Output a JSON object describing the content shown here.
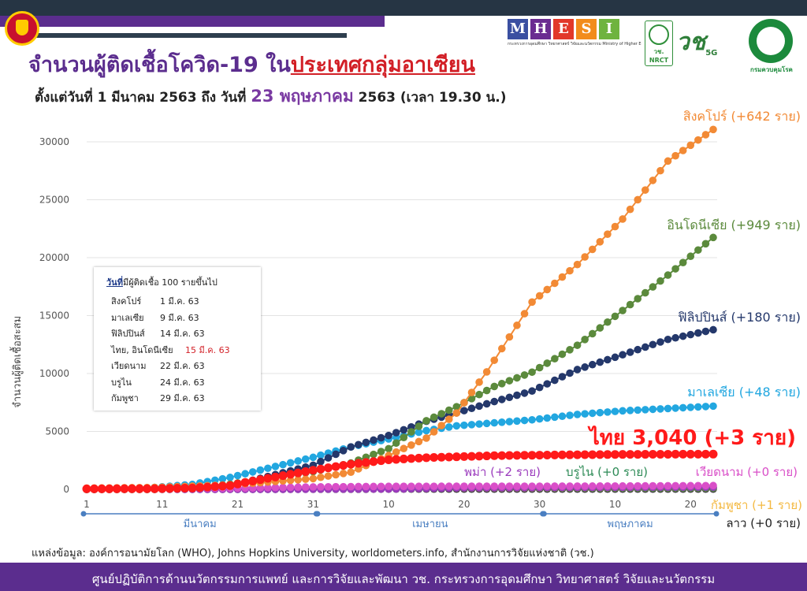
{
  "header": {
    "title_part1": "จำนวนผู้ติดเชื้อโควิด-19 ใน",
    "title_part2": "ประเทศกลุ่มอาเซียน",
    "subtitle_part1": "ตั้งแต่วันที่ 1 มีนาคม 2563 ถึง วันที่ ",
    "subtitle_date": "23 พฤษภาคม",
    "subtitle_part2": " 2563 (เวลา 19.30 น.)"
  },
  "logos": {
    "mhesi_letters": [
      "M",
      "H",
      "E",
      "S",
      "I"
    ],
    "mhesi_colors": [
      "#3a4fa1",
      "#6a2c91",
      "#e2382a",
      "#f28c1c",
      "#6fb33f"
    ],
    "mhesi_caption": "กระทรวงการอุดมศึกษา วิทยาศาสตร์ วิจัยและนวัตกรรม Ministry of Higher Education, Science, Research and Innovation",
    "nrct": "วช. NRCT",
    "vc5g": "วช",
    "vc5g_sub": "5G",
    "moph": "กรมควบคุมโรค"
  },
  "chart_data": {
    "type": "line",
    "ylabel": "จำนวนผู้ติดเชื้อสะสม",
    "ylim": [
      0,
      32000
    ],
    "yticks": [
      "0",
      "5000",
      "10000",
      "15000",
      "20000",
      "25000",
      "30000"
    ],
    "ytick_values": [
      0,
      5000,
      10000,
      15000,
      20000,
      25000,
      30000
    ],
    "xticks": [
      "1",
      "11",
      "21",
      "31",
      "10",
      "20",
      "30",
      "10",
      "20"
    ],
    "xtick_days": [
      1,
      11,
      21,
      31,
      41,
      51,
      61,
      71,
      81
    ],
    "months": [
      {
        "label": "มีนาคม",
        "start": 1,
        "end": 31
      },
      {
        "label": "เมษายน",
        "start": 32,
        "end": 61
      },
      {
        "label": "พฤษภาคม",
        "start": 62,
        "end": 84
      }
    ],
    "x_unit": "day since 1 Mar 2020",
    "x_range": [
      1,
      84
    ],
    "series": [
      {
        "name": "สิงคโปร์",
        "label": "สิงคโปร์ (+642 ราย)",
        "color": "#f28a35",
        "points": [
          [
            1,
            108
          ],
          [
            10,
            166
          ],
          [
            20,
            385
          ],
          [
            31,
            926
          ],
          [
            36,
            1481
          ],
          [
            41,
            2918
          ],
          [
            46,
            4427
          ],
          [
            50,
            6588
          ],
          [
            54,
            10141
          ],
          [
            60,
            16169
          ],
          [
            66,
            19410
          ],
          [
            72,
            23336
          ],
          [
            78,
            28343
          ],
          [
            84,
            31068
          ]
        ]
      },
      {
        "name": "อินโดนีเซีย",
        "label": "อินโดนีเซีย (+949 ราย)",
        "color": "#5b8a3c",
        "points": [
          [
            1,
            0
          ],
          [
            10,
            0
          ],
          [
            15,
            117
          ],
          [
            20,
            450
          ],
          [
            31,
            1528
          ],
          [
            36,
            2273
          ],
          [
            41,
            3512
          ],
          [
            46,
            5923
          ],
          [
            50,
            7135
          ],
          [
            55,
            8882
          ],
          [
            60,
            10118
          ],
          [
            66,
            12438
          ],
          [
            72,
            15438
          ],
          [
            78,
            18496
          ],
          [
            84,
            21745
          ]
        ]
      },
      {
        "name": "ฟิลิปปินส์",
        "label": "ฟิลิปปินส์ (+180 ราย)",
        "color": "#24386b",
        "points": [
          [
            1,
            3
          ],
          [
            10,
            33
          ],
          [
            14,
            111
          ],
          [
            20,
            307
          ],
          [
            31,
            2084
          ],
          [
            36,
            3660
          ],
          [
            41,
            4648
          ],
          [
            46,
            5878
          ],
          [
            50,
            6599
          ],
          [
            55,
            7579
          ],
          [
            60,
            8488
          ],
          [
            66,
            10343
          ],
          [
            72,
            11618
          ],
          [
            78,
            12942
          ],
          [
            84,
            13777
          ]
        ]
      },
      {
        "name": "มาเลเซีย",
        "label": "มาเลเซีย (+48 ราย)",
        "color": "#22a7e0",
        "points": [
          [
            1,
            29
          ],
          [
            9,
            117
          ],
          [
            15,
            428
          ],
          [
            20,
            1030
          ],
          [
            31,
            2766
          ],
          [
            36,
            3662
          ],
          [
            41,
            4346
          ],
          [
            46,
            5072
          ],
          [
            50,
            5482
          ],
          [
            55,
            5742
          ],
          [
            60,
            6002
          ],
          [
            66,
            6467
          ],
          [
            72,
            6779
          ],
          [
            78,
            6978
          ],
          [
            84,
            7185
          ]
        ]
      },
      {
        "name": "ไทย",
        "label": "ไทย 3,040 (+3 ราย)",
        "color": "#ff1a1a",
        "points": [
          [
            1,
            42
          ],
          [
            10,
            53
          ],
          [
            15,
            114
          ],
          [
            20,
            322
          ],
          [
            22,
            599
          ],
          [
            31,
            1651
          ],
          [
            36,
            2169
          ],
          [
            41,
            2551
          ],
          [
            46,
            2733
          ],
          [
            50,
            2811
          ],
          [
            55,
            2907
          ],
          [
            61,
            2954
          ],
          [
            66,
            2988
          ],
          [
            72,
            3015
          ],
          [
            78,
            3031
          ],
          [
            84,
            3040
          ]
        ]
      },
      {
        "name": "เวียดนาม",
        "label": "เวียดนาม (+0 ราย)",
        "color": "#d94fc8",
        "points": [
          [
            1,
            16
          ],
          [
            10,
            39
          ],
          [
            22,
            113
          ],
          [
            31,
            212
          ],
          [
            41,
            257
          ],
          [
            51,
            268
          ],
          [
            61,
            270
          ],
          [
            71,
            288
          ],
          [
            84,
            325
          ]
        ]
      },
      {
        "name": "บรูไน",
        "label": "บรูไน (+0 ราย)",
        "color": "#2e8b57",
        "points": [
          [
            1,
            0
          ],
          [
            9,
            1
          ],
          [
            15,
            50
          ],
          [
            24,
            104
          ],
          [
            31,
            127
          ],
          [
            41,
            136
          ],
          [
            51,
            138
          ],
          [
            61,
            138
          ],
          [
            71,
            141
          ],
          [
            84,
            141
          ]
        ]
      },
      {
        "name": "พม่า",
        "label": "พม่า (+2 ราย)",
        "color": "#9b3bbd",
        "points": [
          [
            1,
            0
          ],
          [
            23,
            0
          ],
          [
            31,
            15
          ],
          [
            41,
            28
          ],
          [
            51,
            127
          ],
          [
            61,
            151
          ],
          [
            71,
            180
          ],
          [
            84,
            201
          ]
        ]
      },
      {
        "name": "กัมพูชา",
        "label": "กัมพูชา (+1 ราย)",
        "color": "#f4b942",
        "points": [
          [
            1,
            1
          ],
          [
            10,
            2
          ],
          [
            20,
            51
          ],
          [
            29,
            103
          ],
          [
            41,
            119
          ],
          [
            51,
            122
          ],
          [
            61,
            122
          ],
          [
            71,
            122
          ],
          [
            84,
            124
          ]
        ]
      },
      {
        "name": "ลาว",
        "label": "ลาว (+0 ราย)",
        "color": "#444444",
        "points": [
          [
            1,
            0
          ],
          [
            24,
            0
          ],
          [
            31,
            9
          ],
          [
            41,
            16
          ],
          [
            51,
            19
          ],
          [
            61,
            19
          ],
          [
            84,
            19
          ]
        ]
      }
    ],
    "grid": true
  },
  "legend_box": {
    "header_underlined": "วันที่",
    "header_rest": "มีผู้ติดเชื้อ 100 รายขึ้นไป",
    "rows": [
      {
        "country": "สิงคโปร์",
        "date": "1 มี.ค. 63"
      },
      {
        "country": "มาเลเซีย",
        "date": "9 มี.ค. 63"
      },
      {
        "country": "ฟิลิปปินส์",
        "date": "14 มี.ค. 63"
      },
      {
        "country": "ไทย, อินโดนีเซีย",
        "date": "15 มี.ค. 63",
        "highlight": true
      },
      {
        "country": "เวียดนาม",
        "date": "22 มี.ค. 63"
      },
      {
        "country": "บรูไน",
        "date": "24 มี.ค. 63"
      },
      {
        "country": "กัมพูชา",
        "date": "29 มี.ค. 63"
      }
    ]
  },
  "source": "แหล่งข้อมูล: องค์การอนามัยโลก (WHO), Johns Hopkins University, worldometers.info, สำนักงานการวิจัยแห่งชาติ (วช.)",
  "footer": "ศูนย์ปฏิบัติการด้านนวัตกรรมการแพทย์ และการวิจัยและพัฒนา วช.  กระทรวงการอุดมศึกษา วิทยาศาสตร์ วิจัยและนวัตกรรม"
}
